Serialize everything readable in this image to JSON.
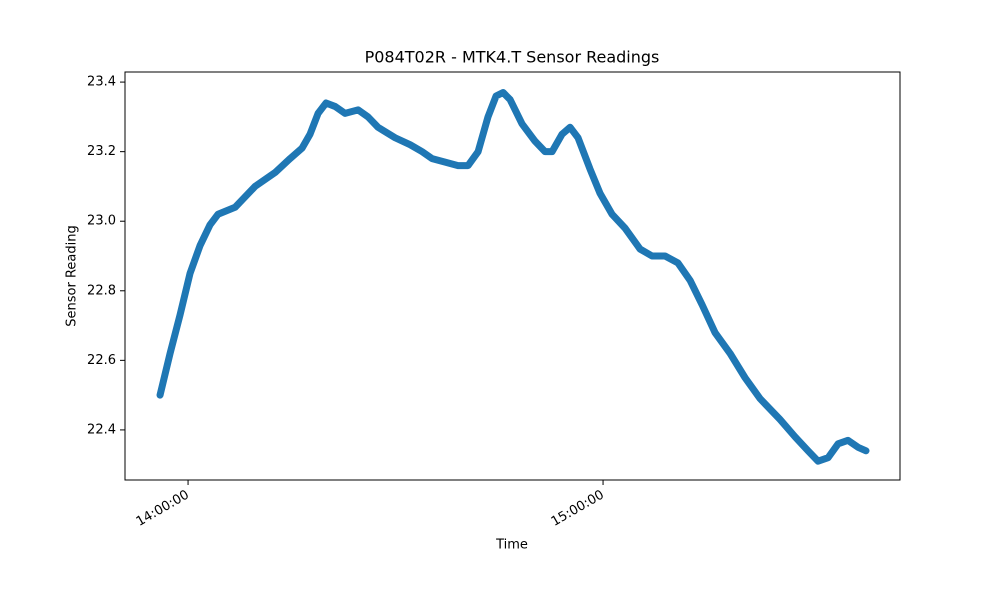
{
  "chart_data": {
    "type": "line",
    "title": "P084T02R - MTK4.T Sensor Readings",
    "xlabel": "Time",
    "ylabel": "Sensor Reading",
    "x": [
      "13:55:57",
      "13:57:24",
      "13:58:50",
      "14:00:17",
      "14:01:44",
      "14:03:11",
      "14:04:20",
      "14:06:48",
      "14:09:41",
      "14:12:35",
      "14:14:45",
      "14:16:29",
      "14:17:38",
      "14:18:48",
      "14:19:57",
      "14:21:15",
      "14:22:42",
      "14:24:35",
      "14:26:01",
      "14:27:28",
      "14:29:56",
      "14:32:06",
      "14:33:50",
      "14:35:17",
      "14:37:10",
      "14:39:02",
      "14:40:29",
      "14:41:56",
      "14:43:22",
      "14:44:32",
      "14:45:33",
      "14:46:33",
      "14:48:17",
      "14:50:10",
      "14:51:37",
      "14:52:38",
      "14:54:04",
      "14:55:14",
      "14:56:23",
      "14:58:07",
      "14:59:34",
      "15:01:18",
      "15:03:11",
      "15:05:21",
      "15:07:05",
      "15:08:58",
      "15:10:50",
      "15:12:35",
      "15:14:19",
      "15:16:11",
      "15:18:22",
      "15:20:32",
      "15:22:42",
      "15:25:35",
      "15:27:46",
      "15:29:38",
      "15:31:05",
      "15:32:32",
      "15:33:59",
      "15:35:25",
      "15:36:52",
      "15:38:01"
    ],
    "values": [
      22.5,
      22.62,
      22.73,
      22.85,
      22.93,
      22.99,
      23.02,
      23.04,
      23.1,
      23.14,
      23.18,
      23.21,
      23.25,
      23.31,
      23.34,
      23.33,
      23.31,
      23.32,
      23.3,
      23.27,
      23.24,
      23.22,
      23.2,
      23.18,
      23.17,
      23.16,
      23.16,
      23.2,
      23.3,
      23.36,
      23.37,
      23.35,
      23.28,
      23.23,
      23.2,
      23.2,
      23.25,
      23.27,
      23.24,
      23.15,
      23.08,
      23.02,
      22.98,
      22.92,
      22.9,
      22.9,
      22.88,
      22.83,
      22.76,
      22.68,
      22.62,
      22.55,
      22.49,
      22.43,
      22.38,
      22.34,
      22.31,
      22.32,
      22.36,
      22.37,
      22.35,
      22.34
    ],
    "color": "#1f77b4",
    "xlim": [
      "13:50:53",
      "15:42:56"
    ],
    "xticks": [
      "14:00:00",
      "15:00:00"
    ],
    "ylim": [
      22.256,
      23.429
    ],
    "yticks": [
      22.4,
      22.6,
      22.8,
      {
        "value": 23,
        "label": "23.0"
      },
      23.2,
      23.4
    ]
  }
}
